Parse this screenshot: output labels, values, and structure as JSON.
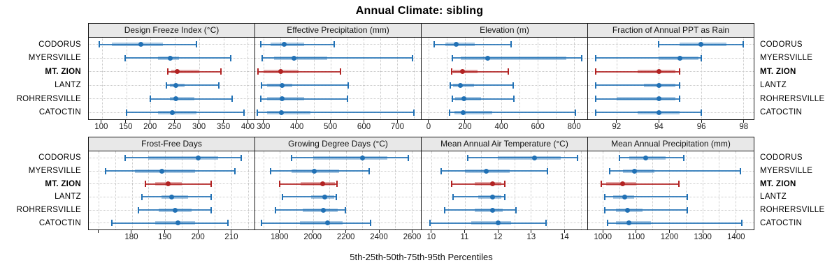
{
  "title": "Annual Climate: sibling",
  "xlabel": "5th-25th-50th-75th-95th Percentiles",
  "colors": {
    "accent_blue": "#2171b5",
    "accent_blue_band": "rgba(33,113,181,0.38)",
    "highlight_red": "#b22222",
    "highlight_red_band": "rgba(178,34,34,0.38)",
    "header_bg": "#e8e8e8",
    "panel_border": "#1a1a1a",
    "grid": "#c8c8c8",
    "text": "#000000"
  },
  "chart_data": {
    "type": "dotplot-intervals",
    "title": "Annual Climate: sibling",
    "xlabel": "5th-25th-50th-75th-95th Percentiles",
    "percentiles": [
      5,
      25,
      50,
      75,
      95
    ],
    "sites": [
      "CODORUS",
      "MYERSVILLE",
      "MT. ZION",
      "LANTZ",
      "ROHRERSVILLE",
      "CATOCTIN"
    ],
    "highlight_site": "MT. ZION",
    "legend_position": "none",
    "grid_on": true,
    "panels": [
      {
        "title": "Design Freeze Index (°C)",
        "row": 0,
        "domain": [
          73,
          414
        ],
        "ticks": [
          {
            "v": 100,
            "label": "100"
          },
          {
            "v": 150,
            "label": "150"
          },
          {
            "v": 200,
            "label": "200"
          },
          {
            "v": 250,
            "label": "250"
          },
          {
            "v": 300,
            "label": "300"
          },
          {
            "v": 350,
            "label": "350"
          },
          {
            "v": 400,
            "label": "400"
          }
        ],
        "grid": [
          100,
          150,
          200,
          250,
          300,
          350,
          400
        ],
        "values": [
          [
            95,
            120,
            180,
            225,
            295
          ],
          [
            148,
            215,
            240,
            258,
            365
          ],
          [
            235,
            243,
            255,
            300,
            345
          ],
          [
            232,
            240,
            252,
            270,
            340
          ],
          [
            200,
            240,
            252,
            290,
            368
          ],
          [
            150,
            215,
            245,
            295,
            393
          ]
        ]
      },
      {
        "title": "Effective Precipitation (mm)",
        "row": 0,
        "domain": [
          274,
          771
        ],
        "ticks": [
          {
            "v": 300,
            "label": "300"
          },
          {
            "v": 400,
            "label": "400"
          },
          {
            "v": 500,
            "label": "500"
          },
          {
            "v": 600,
            "label": "600"
          },
          {
            "v": 700,
            "label": "700"
          }
        ],
        "grid": [
          300,
          350,
          400,
          450,
          500,
          550,
          600,
          650,
          700,
          750
        ],
        "values": [
          [
            290,
            320,
            360,
            420,
            510
          ],
          [
            295,
            330,
            390,
            490,
            745
          ],
          [
            283,
            300,
            350,
            405,
            530
          ],
          [
            293,
            310,
            355,
            385,
            553
          ],
          [
            290,
            310,
            355,
            420,
            550
          ],
          [
            280,
            310,
            352,
            440,
            750
          ]
        ]
      },
      {
        "title": "Elevation (m)",
        "row": 0,
        "domain": [
          -40,
          875
        ],
        "ticks": [
          {
            "v": 0,
            "label": "0"
          },
          {
            "v": 200,
            "label": "200"
          },
          {
            "v": 400,
            "label": "400"
          },
          {
            "v": 600,
            "label": "600"
          },
          {
            "v": 800,
            "label": "800"
          }
        ],
        "grid": [
          0,
          100,
          200,
          300,
          400,
          500,
          600,
          700,
          800
        ],
        "values": [
          [
            30,
            90,
            150,
            255,
            455
          ],
          [
            130,
            175,
            325,
            760,
            845
          ],
          [
            125,
            135,
            185,
            270,
            440
          ],
          [
            120,
            135,
            175,
            250,
            465
          ],
          [
            130,
            145,
            195,
            290,
            470
          ],
          [
            115,
            140,
            190,
            350,
            810
          ]
        ]
      },
      {
        "title": "Fraction of Annual PPT as Rain",
        "row": 0,
        "domain": [
          90.65,
          98.5
        ],
        "ticks": [
          {
            "v": 92,
            "label": "92"
          },
          {
            "v": 94,
            "label": "94"
          },
          {
            "v": 96,
            "label": "96"
          },
          {
            "v": 98,
            "label": "98"
          }
        ],
        "grid": [
          92,
          94,
          96,
          98
        ],
        "values": [
          [
            94,
            95,
            96,
            97.2,
            98
          ],
          [
            91,
            94,
            95,
            95.9,
            96
          ],
          [
            91,
            93,
            94,
            94.8,
            95
          ],
          [
            91,
            93.3,
            94,
            94.8,
            95
          ],
          [
            91,
            92,
            94,
            94.8,
            95
          ],
          [
            91,
            93,
            94,
            95,
            96
          ]
        ]
      },
      {
        "title": "Frost-Free Days",
        "row": 1,
        "domain": [
          167,
          217
        ],
        "ticks": [
          {
            "v": 170,
            "label": ""
          },
          {
            "v": 180,
            "label": "180"
          },
          {
            "v": 190,
            "label": "190"
          },
          {
            "v": 200,
            "label": "200"
          },
          {
            "v": 210,
            "label": "210"
          }
        ],
        "grid": [
          170,
          175,
          180,
          185,
          190,
          195,
          200,
          205,
          210,
          215
        ],
        "values": [
          [
            178,
            185,
            200,
            206,
            213
          ],
          [
            172,
            181,
            189,
            199,
            211
          ],
          [
            184,
            187,
            191,
            195,
            204
          ],
          [
            183,
            189,
            192,
            197,
            204
          ],
          [
            182,
            188,
            193,
            198,
            204
          ],
          [
            174,
            187,
            194,
            199,
            209
          ]
        ]
      },
      {
        "title": "Growing Degree Days (°C)",
        "row": 1,
        "domain": [
          1650,
          2655
        ],
        "ticks": [
          {
            "v": 1800,
            "label": "1800"
          },
          {
            "v": 2000,
            "label": "2000"
          },
          {
            "v": 2200,
            "label": "2200"
          },
          {
            "v": 2400,
            "label": "2400"
          },
          {
            "v": 2600,
            "label": "2600"
          }
        ],
        "grid": [
          1700,
          1800,
          1900,
          2000,
          2100,
          2200,
          2300,
          2400,
          2500,
          2600
        ],
        "values": [
          [
            1870,
            2000,
            2300,
            2450,
            2580
          ],
          [
            1745,
            1870,
            2010,
            2160,
            2340
          ],
          [
            1800,
            1925,
            2060,
            2135,
            2145
          ],
          [
            1815,
            1990,
            2070,
            2130,
            2140
          ],
          [
            1775,
            1940,
            2065,
            2150,
            2195
          ],
          [
            1690,
            1920,
            2090,
            2180,
            2350
          ]
        ]
      },
      {
        "title": "Mean Annual Air Temperature (°C)",
        "row": 1,
        "domain": [
          9.7,
          14.7
        ],
        "ticks": [
          {
            "v": 10,
            "label": "10"
          },
          {
            "v": 11,
            "label": "11"
          },
          {
            "v": 12,
            "label": "12"
          },
          {
            "v": 13,
            "label": "13"
          },
          {
            "v": 14,
            "label": "14"
          }
        ],
        "grid": [
          10,
          10.5,
          11,
          11.5,
          12,
          12.5,
          13,
          13.5,
          14,
          14.5
        ],
        "values": [
          [
            11.1,
            12.0,
            13.1,
            13.9,
            14.4
          ],
          [
            10.3,
            11.0,
            11.65,
            12.35,
            13.5
          ],
          [
            10.6,
            11.3,
            11.85,
            12.1,
            12.2
          ],
          [
            10.65,
            11.4,
            11.85,
            12.1,
            12.2
          ],
          [
            10.4,
            11.3,
            11.85,
            12.15,
            12.55
          ],
          [
            9.95,
            11.2,
            12.0,
            12.4,
            13.45
          ]
        ]
      },
      {
        "title": "Mean Annual Precipitation (mm)",
        "row": 1,
        "domain": [
          955,
          1455
        ],
        "ticks": [
          {
            "v": 1000,
            "label": "1000"
          },
          {
            "v": 1100,
            "label": "1100"
          },
          {
            "v": 1200,
            "label": "1200"
          },
          {
            "v": 1300,
            "label": "1300"
          },
          {
            "v": 1400,
            "label": "1400"
          }
        ],
        "grid": [
          1000,
          1050,
          1100,
          1150,
          1200,
          1250,
          1300,
          1350,
          1400
        ],
        "values": [
          [
            1050,
            1080,
            1130,
            1190,
            1245
          ],
          [
            1020,
            1060,
            1095,
            1155,
            1415
          ],
          [
            995,
            1010,
            1060,
            1100,
            1230
          ],
          [
            1005,
            1030,
            1065,
            1095,
            1255
          ],
          [
            1005,
            1040,
            1075,
            1120,
            1255
          ],
          [
            1015,
            1040,
            1078,
            1145,
            1420
          ]
        ]
      }
    ]
  }
}
